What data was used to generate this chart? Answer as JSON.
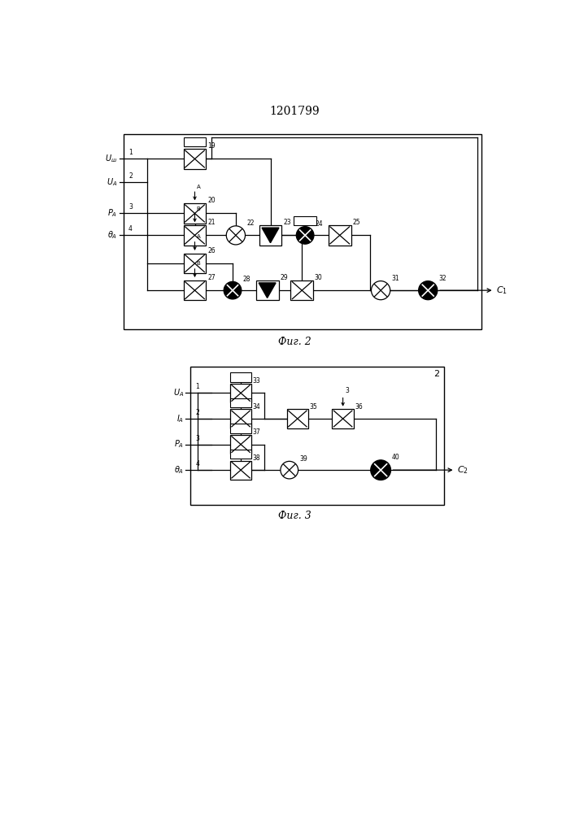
{
  "title": "1201799",
  "fig1_caption": "Фиг. 2",
  "fig2_caption": "Фиг. 3",
  "bg_color": "#ffffff",
  "lc": "#000000"
}
